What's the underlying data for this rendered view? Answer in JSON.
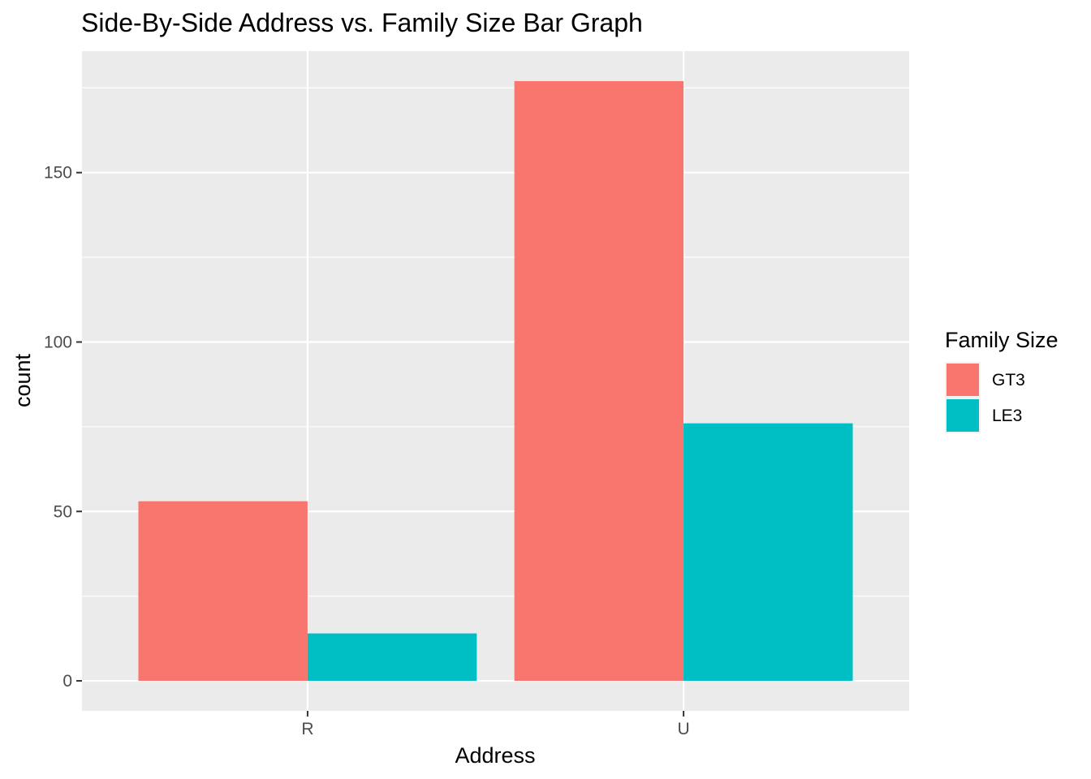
{
  "chart_data": {
    "type": "bar",
    "title": "Side-By-Side Address vs. Family Size Bar Graph",
    "xlabel": "Address",
    "ylabel": "count",
    "categories": [
      "R",
      "U"
    ],
    "series": [
      {
        "name": "GT3",
        "values": [
          53,
          177
        ],
        "color": "#F8766D"
      },
      {
        "name": "LE3",
        "values": [
          14,
          76
        ],
        "color": "#00BFC4"
      }
    ],
    "ylim": [
      -8.85,
      185.85
    ],
    "yticks": [
      0,
      50,
      100,
      150
    ],
    "ytick_labels": [
      "0",
      "50",
      "100",
      "150"
    ],
    "legend": {
      "title": "Family Size",
      "position": "right"
    },
    "grid": true,
    "panel_background": "#EBEBEB"
  }
}
